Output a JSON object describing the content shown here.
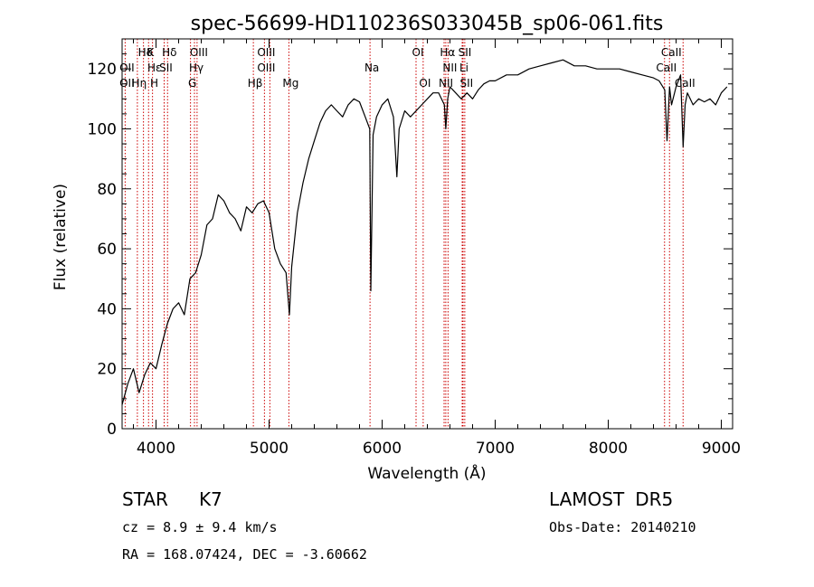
{
  "chart_data": {
    "type": "line",
    "title": "spec-56699-HD110236S033045B_sp06-061.fits",
    "xlabel": "Wavelength (Å)",
    "ylabel": "Flux (relative)",
    "xlim": [
      3700,
      9100
    ],
    "ylim": [
      0,
      130
    ],
    "x_ticks": [
      4000,
      5000,
      6000,
      7000,
      8000,
      9000
    ],
    "y_ticks": [
      0,
      20,
      40,
      60,
      80,
      100,
      120
    ],
    "grid": false,
    "series": [
      {
        "x": [
          3700,
          3750,
          3800,
          3850,
          3900,
          3950,
          4000,
          4050,
          4100,
          4150,
          4200,
          4250,
          4300,
          4350,
          4400,
          4450,
          4500,
          4550,
          4600,
          4650,
          4700,
          4750,
          4800,
          4850,
          4900,
          4950,
          5000,
          5050,
          5100,
          5150,
          5180,
          5200,
          5250,
          5300,
          5350,
          5400,
          5450,
          5500,
          5550,
          5600,
          5650,
          5700,
          5750,
          5800,
          5850,
          5890,
          5900,
          5920,
          5950,
          6000,
          6050,
          6100,
          6130,
          6150,
          6200,
          6250,
          6300,
          6350,
          6400,
          6450,
          6500,
          6550,
          6563,
          6580,
          6600,
          6650,
          6700,
          6750,
          6800,
          6850,
          6900,
          6950,
          7000,
          7100,
          7200,
          7300,
          7400,
          7500,
          7600,
          7700,
          7800,
          7900,
          8000,
          8100,
          8200,
          8300,
          8400,
          8450,
          8500,
          8520,
          8542,
          8560,
          8600,
          8640,
          8662,
          8680,
          8700,
          8750,
          8800,
          8850,
          8900,
          8950,
          9000,
          9050
        ],
        "y": [
          8,
          15,
          20,
          12,
          18,
          22,
          20,
          28,
          35,
          40,
          42,
          38,
          50,
          52,
          58,
          68,
          70,
          78,
          76,
          72,
          70,
          66,
          74,
          72,
          75,
          76,
          72,
          60,
          55,
          52,
          38,
          54,
          72,
          82,
          90,
          96,
          102,
          106,
          108,
          106,
          104,
          108,
          110,
          109,
          104,
          100,
          46,
          98,
          104,
          108,
          110,
          104,
          84,
          100,
          106,
          104,
          106,
          108,
          110,
          112,
          112,
          108,
          100,
          110,
          114,
          112,
          110,
          112,
          110,
          113,
          115,
          116,
          116,
          118,
          118,
          120,
          121,
          122,
          123,
          121,
          121,
          120,
          120,
          120,
          119,
          118,
          117,
          116,
          113,
          96,
          114,
          108,
          114,
          118,
          94,
          108,
          112,
          108,
          110,
          109,
          110,
          108,
          112,
          114
        ]
      }
    ],
    "annotations": [
      {
        "label": "Hδ",
        "x": 3890,
        "row": 1
      },
      {
        "label": "OII",
        "x": 3727,
        "row": 2
      },
      {
        "label": "OII",
        "x": 3727,
        "row": 3
      },
      {
        "label": "K",
        "x": 3934,
        "row": 1
      },
      {
        "label": "Hε",
        "x": 3970,
        "row": 2
      },
      {
        "label": "Hη",
        "x": 3835,
        "row": 3
      },
      {
        "label": "H",
        "x": 3968,
        "row": 3
      },
      {
        "label": "SII",
        "x": 4072,
        "row": 2
      },
      {
        "label": "Hδ",
        "x": 4102,
        "row": 1
      },
      {
        "label": "OIII",
        "x": 4363,
        "row": 1
      },
      {
        "label": "Hγ",
        "x": 4340,
        "row": 2
      },
      {
        "label": "G",
        "x": 4305,
        "row": 3
      },
      {
        "label": "OIII",
        "x": 4959,
        "row": 1
      },
      {
        "label": "OIII",
        "x": 4959,
        "row": 2
      },
      {
        "label": "Hβ",
        "x": 4861,
        "row": 3
      },
      {
        "label": "Mg",
        "x": 5175,
        "row": 3
      },
      {
        "label": "Na",
        "x": 5893,
        "row": 2
      },
      {
        "label": "OI",
        "x": 6300,
        "row": 1
      },
      {
        "label": "OI",
        "x": 6363,
        "row": 3
      },
      {
        "label": "Hα",
        "x": 6563,
        "row": 1
      },
      {
        "label": "SII",
        "x": 6716,
        "row": 1
      },
      {
        "label": "NII",
        "x": 6583,
        "row": 2
      },
      {
        "label": "Li",
        "x": 6708,
        "row": 2
      },
      {
        "label": "NII",
        "x": 6548,
        "row": 3
      },
      {
        "label": "SII",
        "x": 6731,
        "row": 3
      },
      {
        "label": "CaII",
        "x": 8542,
        "row": 1
      },
      {
        "label": "CaII",
        "x": 8498,
        "row": 2
      },
      {
        "label": "CaII",
        "x": 8662,
        "row": 3
      }
    ],
    "line_markers_x": [
      3727,
      3835,
      3889,
      3934,
      3969,
      4072,
      4102,
      4305,
      4340,
      4363,
      4861,
      4959,
      5007,
      5175,
      5893,
      6300,
      6363,
      6548,
      6563,
      6583,
      6708,
      6716,
      6731,
      8498,
      8542,
      8662
    ],
    "colors": {
      "spectrum": "#000000",
      "markers": "#cc0000"
    }
  },
  "info": {
    "class": "STAR",
    "subclass": "K7",
    "survey": "LAMOST",
    "release": "DR5",
    "cz": "cz =  8.9  ±  9.4 km/s",
    "obsdate": "Obs-Date: 20140210",
    "radec": "RA = 168.07424, DEC =  -3.60662"
  }
}
